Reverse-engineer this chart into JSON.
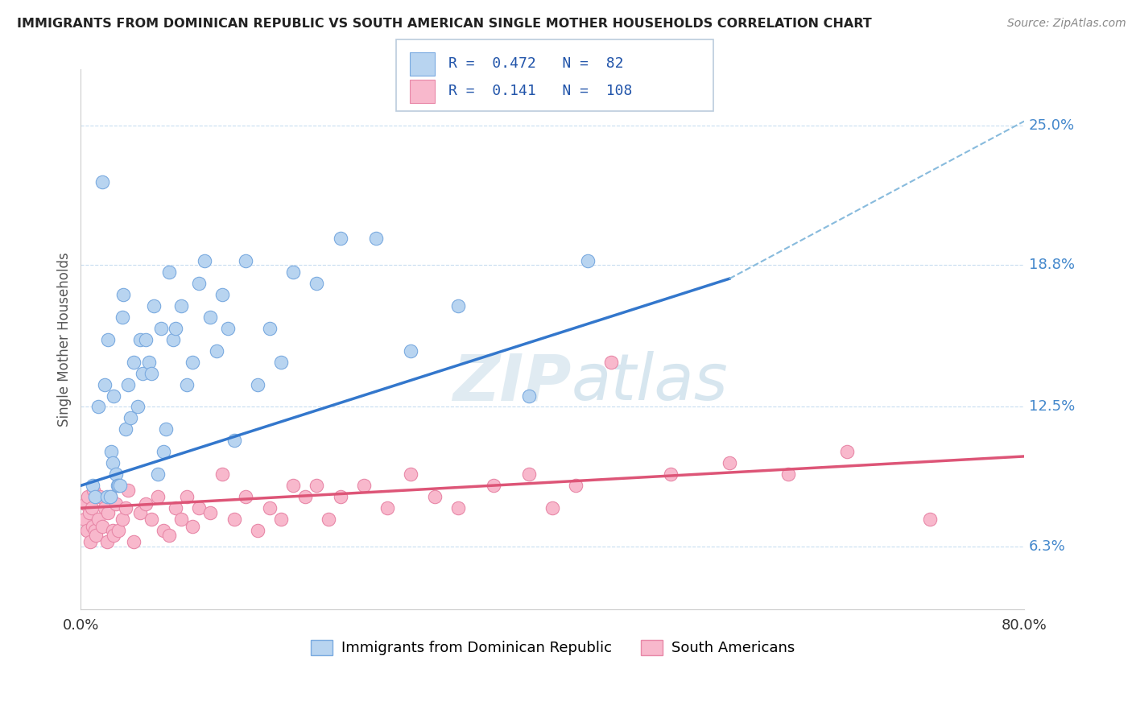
{
  "title": "IMMIGRANTS FROM DOMINICAN REPUBLIC VS SOUTH AMERICAN SINGLE MOTHER HOUSEHOLDS CORRELATION CHART",
  "source": "Source: ZipAtlas.com",
  "ylabel": "Single Mother Households",
  "xlim": [
    0.0,
    80.0
  ],
  "ylim": [
    3.5,
    27.5
  ],
  "yticks": [
    6.3,
    12.5,
    18.8,
    25.0
  ],
  "ytick_labels": [
    "6.3%",
    "12.5%",
    "18.8%",
    "25.0%"
  ],
  "xticks": [
    0.0,
    20.0,
    40.0,
    60.0,
    80.0
  ],
  "xtick_labels": [
    "0.0%",
    "",
    "",
    "",
    "80.0%"
  ],
  "blue_R": 0.472,
  "blue_N": 82,
  "pink_R": 0.141,
  "pink_N": 108,
  "blue_color": "#b8d4f0",
  "blue_edge": "#7aaae0",
  "pink_color": "#f8b8cc",
  "pink_edge": "#e888a8",
  "blue_line_color": "#3377cc",
  "pink_line_color": "#dd5577",
  "dashed_line_color": "#88bbdd",
  "background_color": "#ffffff",
  "watermark_zip": "ZIP",
  "watermark_atlas": "atlas",
  "legend_blue_label": "Immigrants from Dominican Republic",
  "legend_pink_label": "South Americans",
  "blue_line_x0": 0.0,
  "blue_line_y0": 9.0,
  "blue_line_x1": 55.0,
  "blue_line_y1": 18.2,
  "dashed_line_x0": 55.0,
  "dashed_line_y0": 18.2,
  "dashed_line_x1": 80.0,
  "dashed_line_y1": 25.2,
  "pink_line_x0": 0.0,
  "pink_line_y0": 8.0,
  "pink_line_x1": 80.0,
  "pink_line_y1": 10.3,
  "blue_scatter_x": [
    1.0,
    1.2,
    1.5,
    1.8,
    2.0,
    2.2,
    2.3,
    2.5,
    2.6,
    2.7,
    2.8,
    3.0,
    3.1,
    3.2,
    3.3,
    3.5,
    3.6,
    3.8,
    4.0,
    4.2,
    4.5,
    4.8,
    5.0,
    5.2,
    5.5,
    5.8,
    6.0,
    6.2,
    6.5,
    6.8,
    7.0,
    7.2,
    7.5,
    7.8,
    8.0,
    8.5,
    9.0,
    9.5,
    10.0,
    10.5,
    11.0,
    11.5,
    12.0,
    12.5,
    13.0,
    14.0,
    15.0,
    16.0,
    17.0,
    18.0,
    20.0,
    22.0,
    25.0,
    28.0,
    32.0,
    38.0,
    43.0
  ],
  "blue_scatter_y": [
    9.0,
    8.5,
    12.5,
    22.5,
    13.5,
    8.5,
    15.5,
    8.5,
    10.5,
    10.0,
    13.0,
    9.5,
    9.0,
    9.0,
    9.0,
    16.5,
    17.5,
    11.5,
    13.5,
    12.0,
    14.5,
    12.5,
    15.5,
    14.0,
    15.5,
    14.5,
    14.0,
    17.0,
    9.5,
    16.0,
    10.5,
    11.5,
    18.5,
    15.5,
    16.0,
    17.0,
    13.5,
    14.5,
    18.0,
    19.0,
    16.5,
    15.0,
    17.5,
    16.0,
    11.0,
    19.0,
    13.5,
    16.0,
    14.5,
    18.5,
    18.0,
    20.0,
    20.0,
    15.0,
    17.0,
    13.0,
    19.0
  ],
  "pink_scatter_x": [
    0.3,
    0.4,
    0.5,
    0.6,
    0.7,
    0.8,
    0.9,
    1.0,
    1.1,
    1.2,
    1.3,
    1.5,
    1.6,
    1.8,
    2.0,
    2.2,
    2.3,
    2.5,
    2.7,
    2.8,
    3.0,
    3.2,
    3.5,
    3.8,
    4.0,
    4.5,
    5.0,
    5.5,
    6.0,
    6.5,
    7.0,
    7.5,
    8.0,
    8.5,
    9.0,
    9.5,
    10.0,
    11.0,
    12.0,
    13.0,
    14.0,
    15.0,
    16.0,
    17.0,
    18.0,
    19.0,
    20.0,
    21.0,
    22.0,
    24.0,
    26.0,
    28.0,
    30.0,
    32.0,
    35.0,
    38.0,
    40.0,
    42.0,
    45.0,
    50.0,
    55.0,
    60.0,
    65.0,
    72.0
  ],
  "pink_scatter_y": [
    7.5,
    8.2,
    7.0,
    8.5,
    7.8,
    6.5,
    8.0,
    7.2,
    8.8,
    7.0,
    6.8,
    7.5,
    8.5,
    7.2,
    8.0,
    6.5,
    7.8,
    8.5,
    7.0,
    6.8,
    8.2,
    7.0,
    7.5,
    8.0,
    8.8,
    6.5,
    7.8,
    8.2,
    7.5,
    8.5,
    7.0,
    6.8,
    8.0,
    7.5,
    8.5,
    7.2,
    8.0,
    7.8,
    9.5,
    7.5,
    8.5,
    7.0,
    8.0,
    7.5,
    9.0,
    8.5,
    9.0,
    7.5,
    8.5,
    9.0,
    8.0,
    9.5,
    8.5,
    8.0,
    9.0,
    9.5,
    8.0,
    9.0,
    14.5,
    9.5,
    10.0,
    9.5,
    10.5,
    7.5
  ]
}
